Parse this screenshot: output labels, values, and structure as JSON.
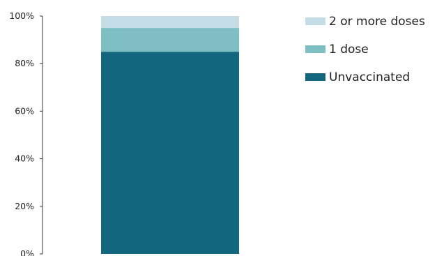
{
  "chart_data": {
    "type": "bar",
    "stacked": true,
    "categories": [
      ""
    ],
    "series": [
      {
        "name": "Unvaccinated",
        "values": [
          85
        ],
        "color": "#12677e"
      },
      {
        "name": "1 dose",
        "values": [
          10
        ],
        "color": "#7dbfc2"
      },
      {
        "name": "2 or more doses",
        "values": [
          5
        ],
        "color": "#c5dde6"
      }
    ],
    "y_ticks": [
      "0%",
      "20%",
      "40%",
      "60%",
      "80%",
      "100%"
    ],
    "ylim": [
      0,
      100
    ],
    "legend": {
      "placement": "top-right",
      "order": [
        "2 or more doses",
        "1 dose",
        "Unvaccinated"
      ]
    },
    "grid": false,
    "title": "",
    "xlabel": "",
    "ylabel": ""
  }
}
